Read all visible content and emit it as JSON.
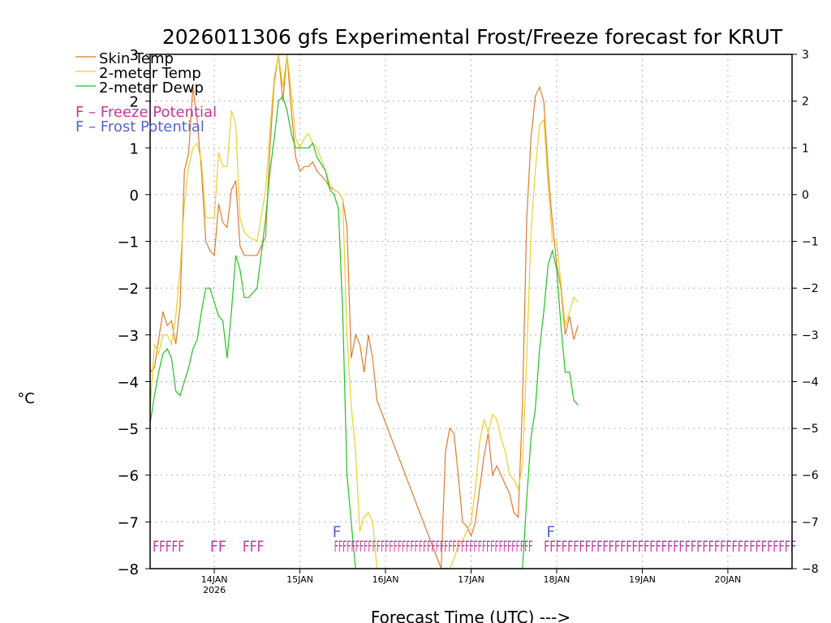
{
  "chart_data": {
    "type": "line",
    "title": "2026011306 gfs Experimental Frost/Freeze forecast for KRUT",
    "ylabel": "°C",
    "xlabel": "Forecast Time (UTC) --->",
    "ylim": [
      -8,
      3
    ],
    "xlim": [
      13.25,
      20.75
    ],
    "grid": true,
    "legend_position": "top-left",
    "y_ticks": [
      "3",
      "2",
      "1",
      "0",
      "−1",
      "−2",
      "−3",
      "−4",
      "−5",
      "−6",
      "−7",
      "−8"
    ],
    "y_tick_values": [
      3,
      2,
      1,
      0,
      -1,
      -2,
      -3,
      -4,
      -5,
      -6,
      -7,
      -8
    ],
    "x_ticks": [
      {
        "day": 14,
        "label": "14JAN",
        "sublabel": "2026"
      },
      {
        "day": 15,
        "label": "15JAN",
        "sublabel": ""
      },
      {
        "day": 16,
        "label": "16JAN",
        "sublabel": ""
      },
      {
        "day": 17,
        "label": "17JAN",
        "sublabel": ""
      },
      {
        "day": 18,
        "label": "18JAN",
        "sublabel": ""
      },
      {
        "day": 19,
        "label": "19JAN",
        "sublabel": ""
      },
      {
        "day": 20,
        "label": "20JAN",
        "sublabel": ""
      }
    ],
    "legend": [
      {
        "label": "Skin Temp",
        "color": "#e07b2c"
      },
      {
        "label": "2-meter Temp",
        "color": "#e8d22a"
      },
      {
        "label": "2-meter Dewp",
        "color": "#22c322"
      },
      {
        "label": "F – Freeze Potential",
        "color": "#cc3399"
      },
      {
        "label": "F – Frost Potential",
        "color": "#5566cc"
      }
    ],
    "series": [
      {
        "name": "Skin Temp",
        "color": "#e07b2c",
        "x": [
          13.25,
          13.3,
          13.35,
          13.4,
          13.45,
          13.5,
          13.55,
          13.6,
          13.65,
          13.7,
          13.75,
          13.8,
          13.85,
          13.9,
          13.95,
          14.0,
          14.05,
          14.1,
          14.15,
          14.2,
          14.25,
          14.3,
          14.35,
          14.4,
          14.5,
          14.6,
          14.65,
          14.7,
          14.75,
          14.8,
          14.85,
          14.9,
          14.95,
          15.0,
          15.05,
          15.1,
          15.15,
          15.2,
          15.3,
          15.35,
          15.4,
          15.45,
          15.5,
          15.55,
          15.6,
          15.65,
          15.7,
          15.75,
          15.8,
          15.85,
          15.9,
          16.65,
          16.7,
          16.75,
          16.8,
          16.85,
          16.9,
          16.95,
          17.0,
          17.05,
          17.1,
          17.15,
          17.2,
          17.25,
          17.3,
          17.35,
          17.4,
          17.45,
          17.5,
          17.55,
          17.6,
          17.65,
          17.7,
          17.75,
          17.8,
          17.85,
          17.9,
          17.95,
          18.0,
          18.05,
          18.1,
          18.15,
          18.2,
          18.25
        ],
        "y": [
          -3.8,
          -3.7,
          -3.1,
          -2.5,
          -2.8,
          -2.7,
          -3.2,
          -2.4,
          0.5,
          0.9,
          2.3,
          1.6,
          0.5,
          -1.0,
          -1.2,
          -1.3,
          -0.2,
          -0.6,
          -0.7,
          0.1,
          0.3,
          -1.1,
          -1.3,
          -1.3,
          -1.3,
          -0.9,
          1.0,
          2.4,
          3.0,
          2.0,
          3.0,
          1.8,
          0.8,
          0.5,
          0.6,
          0.6,
          0.7,
          0.5,
          0.3,
          0.15,
          0.1,
          0.05,
          -0.1,
          -0.7,
          -3.5,
          -3.0,
          -3.2,
          -3.8,
          -3.0,
          -3.5,
          -4.4,
          -8.0,
          -5.5,
          -5.0,
          -5.1,
          -6.0,
          -7.0,
          -7.1,
          -7.3,
          -7.0,
          -6.3,
          -5.6,
          -5.1,
          -6.0,
          -5.8,
          -6.0,
          -6.2,
          -6.4,
          -6.8,
          -6.9,
          -4.5,
          -0.5,
          1.2,
          2.1,
          2.3,
          2.0,
          0.5,
          -0.6,
          -1.5,
          -2.0,
          -3.0,
          -2.6,
          -3.1,
          -2.8
        ]
      },
      {
        "name": "2-meter Temp",
        "color": "#e8d22a",
        "x": [
          13.25,
          13.3,
          13.35,
          13.4,
          13.45,
          13.5,
          13.55,
          13.6,
          13.65,
          13.7,
          13.75,
          13.8,
          13.85,
          13.9,
          13.95,
          14.0,
          14.05,
          14.1,
          14.15,
          14.2,
          14.25,
          14.3,
          14.35,
          14.4,
          14.5,
          14.6,
          14.65,
          14.7,
          14.75,
          14.8,
          14.85,
          14.9,
          14.95,
          15.0,
          15.05,
          15.1,
          15.15,
          15.2,
          15.3,
          15.35,
          15.4,
          15.45,
          15.5,
          15.55,
          15.6,
          15.65,
          15.7,
          15.75,
          15.8,
          15.85,
          15.9,
          16.75,
          16.8,
          16.85,
          16.9,
          16.95,
          17.0,
          17.05,
          17.1,
          17.15,
          17.2,
          17.25,
          17.3,
          17.35,
          17.4,
          17.45,
          17.5,
          17.55,
          17.6,
          17.65,
          17.7,
          17.75,
          17.8,
          17.85,
          17.9,
          17.95,
          18.0,
          18.05,
          18.1,
          18.15,
          18.2,
          18.25
        ],
        "y": [
          -4.6,
          -3.2,
          -3.4,
          -3.0,
          -3.0,
          -3.2,
          -2.6,
          -1.6,
          -0.2,
          0.6,
          1.0,
          1.1,
          0.7,
          -0.5,
          -0.5,
          -0.5,
          0.9,
          0.6,
          0.6,
          1.8,
          1.5,
          -0.5,
          -0.8,
          -0.9,
          -1.0,
          0.1,
          1.4,
          2.5,
          3.0,
          2.3,
          3.0,
          2.2,
          1.2,
          1.0,
          1.2,
          1.3,
          1.1,
          1.0,
          0.5,
          0.2,
          0.1,
          0.05,
          -0.1,
          -3.0,
          -4.5,
          -5.5,
          -7.2,
          -6.9,
          -6.8,
          -7.0,
          -8.0,
          -8.0,
          -7.8,
          -7.5,
          -7.4,
          -7.2,
          -7.0,
          -6.3,
          -5.3,
          -4.8,
          -5.1,
          -4.7,
          -4.8,
          -5.2,
          -5.5,
          -6.0,
          -6.1,
          -6.3,
          -5.8,
          -3.5,
          -0.8,
          0.5,
          1.5,
          1.6,
          0.2,
          -1.0,
          -1.0,
          -1.9,
          -2.8,
          -2.5,
          -2.2,
          -2.3
        ]
      },
      {
        "name": "2-meter Dewp",
        "color": "#22c322",
        "x": [
          13.25,
          13.3,
          13.35,
          13.4,
          13.45,
          13.5,
          13.55,
          13.6,
          13.65,
          13.7,
          13.75,
          13.8,
          13.85,
          13.9,
          13.95,
          14.0,
          14.05,
          14.1,
          14.15,
          14.2,
          14.25,
          14.3,
          14.35,
          14.4,
          14.5,
          14.6,
          14.65,
          14.7,
          14.75,
          14.8,
          14.85,
          14.9,
          14.95,
          15.0,
          15.05,
          15.1,
          15.15,
          15.2,
          15.3,
          15.35,
          15.4,
          15.45,
          15.5,
          15.55,
          15.6,
          15.65,
          17.6,
          17.65,
          17.7,
          17.75,
          17.8,
          17.85,
          17.9,
          17.95,
          18.0,
          18.05,
          18.1,
          18.15,
          18.2,
          18.25
        ],
        "y": [
          -4.9,
          -4.3,
          -3.8,
          -3.4,
          -3.3,
          -3.5,
          -4.2,
          -4.3,
          -4.0,
          -3.7,
          -3.3,
          -3.1,
          -2.5,
          -2.0,
          -2.0,
          -2.3,
          -2.6,
          -2.7,
          -3.5,
          -2.5,
          -1.3,
          -1.6,
          -2.2,
          -2.2,
          -2.0,
          -0.5,
          0.5,
          1.2,
          2.0,
          2.1,
          1.8,
          1.3,
          1.0,
          1.0,
          1.0,
          1.0,
          1.1,
          0.8,
          0.5,
          0.1,
          0.0,
          -0.3,
          -2.5,
          -6.0,
          -7.0,
          -8.0,
          -8.0,
          -6.5,
          -5.2,
          -4.6,
          -3.3,
          -2.5,
          -1.5,
          -1.2,
          -1.6,
          -2.8,
          -3.8,
          -3.8,
          -4.4,
          -4.5
        ]
      }
    ],
    "freeze_flags": [
      {
        "text": "FFFFF",
        "x_start": 13.28,
        "x_end": 13.65
      },
      {
        "text": "FF",
        "x_start": 13.95,
        "x_end": 14.14
      },
      {
        "text": "FFF",
        "x_start": 14.33,
        "x_end": 14.58
      },
      {
        "text": "FFFFFFFFFFFFFFFFFFFFFFFFFFFFFFFFFFFFFFFFFFFFFFF",
        "x_start": 15.4,
        "x_end": 17.72
      },
      {
        "text": "FFFFFFFFFFFFFFFFFFFFFFFFFFFFFFFFFFFFFFFFFFF",
        "x_start": 17.85,
        "x_end": 20.8
      }
    ],
    "frost_flags": [
      {
        "text": "F",
        "x": 15.38
      },
      {
        "text": "F",
        "x": 17.88
      }
    ]
  }
}
